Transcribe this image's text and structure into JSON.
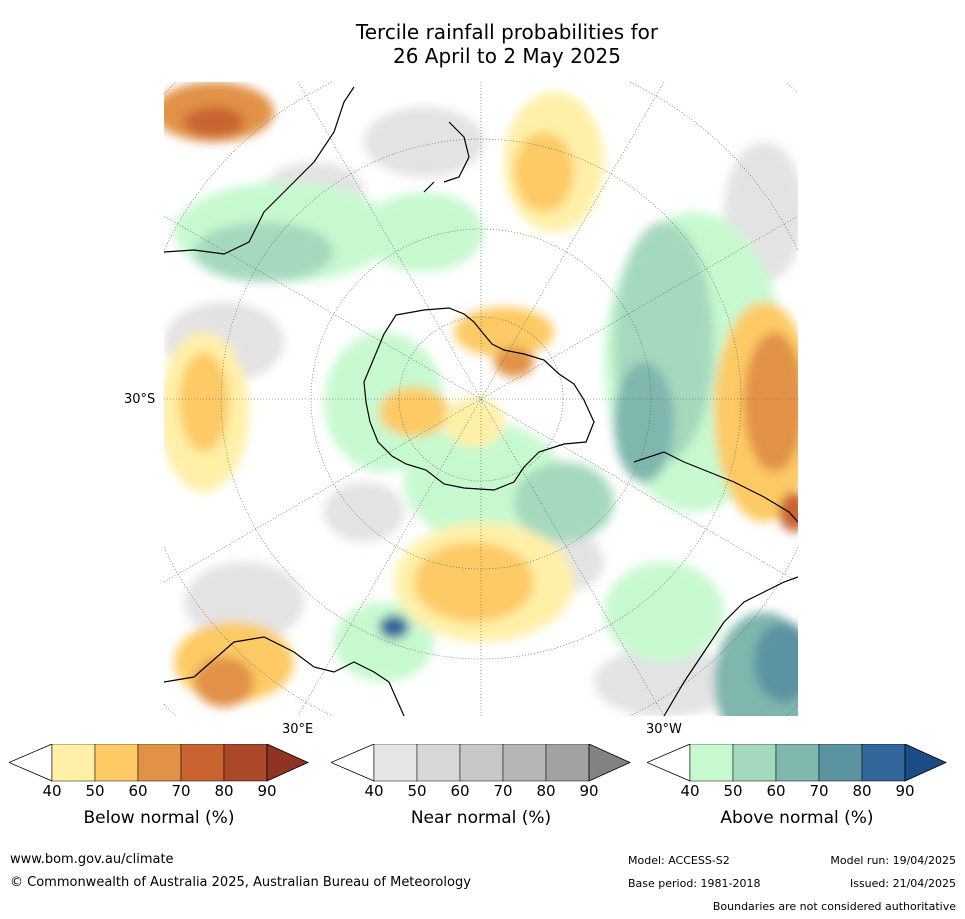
{
  "title_line1": "Tercile rainfall probabilities for",
  "title_line2": "26 April to 2 May 2025",
  "map": {
    "lat_label": "30°S",
    "lon_label_east": "30°E",
    "lon_label_west": "30°W"
  },
  "colorbars": [
    {
      "label": "Below normal (%)",
      "ticks": [
        "40",
        "50",
        "60",
        "70",
        "80",
        "90"
      ],
      "colors": [
        "#fff0a8",
        "#fdca65",
        "#e19247",
        "#c96431",
        "#ab472b",
        "#8f3322"
      ]
    },
    {
      "label": "Near normal (%)",
      "ticks": [
        "40",
        "50",
        "60",
        "70",
        "80",
        "90"
      ],
      "colors": [
        "#e6e6e6",
        "#d7d7d7",
        "#c8c8c8",
        "#b6b6b6",
        "#a2a2a2",
        "#828282"
      ]
    },
    {
      "label": "Above normal (%)",
      "ticks": [
        "40",
        "50",
        "60",
        "70",
        "80",
        "90"
      ],
      "colors": [
        "#c7f9d0",
        "#a5d9bd",
        "#7fb6ae",
        "#5b93a1",
        "#33669b",
        "#1b4c86"
      ]
    }
  ],
  "footer": {
    "url": "www.bom.gov.au/climate",
    "copyright": "© Commonwealth of Australia 2025, Australian Bureau of Meteorology",
    "model": "Model: ACCESS-S2",
    "base_period": "Base period: 1981-2018",
    "model_run": "Model run: 19/04/2025",
    "issued": "Issued: 21/04/2025",
    "disclaimer": "Boundaries are not considered authoritative"
  }
}
